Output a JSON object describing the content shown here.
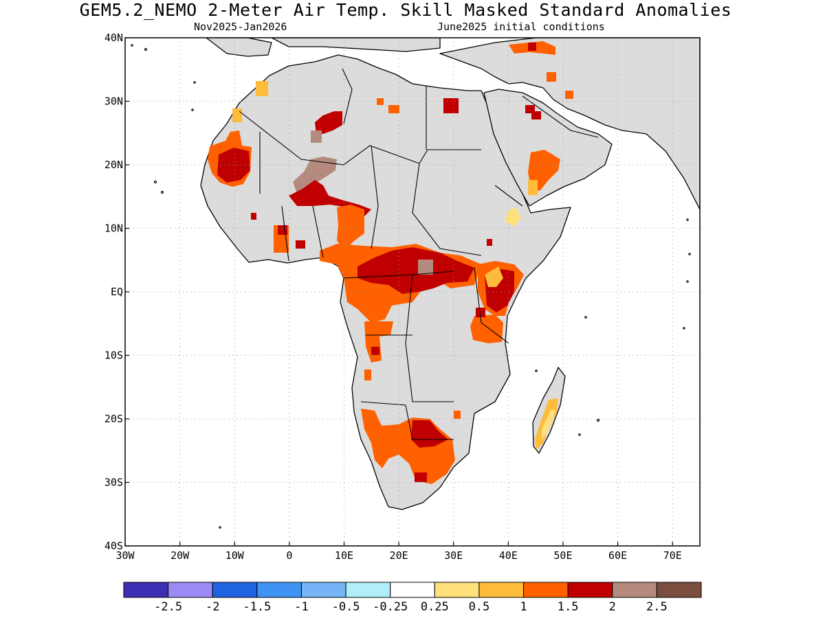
{
  "title": "GEM5.2_NEMO 2-Meter Air Temp. Skill Masked Standard Anomalies",
  "subtitle_left": "Nov2025-Jan2026",
  "subtitle_right": "June2025 initial conditions",
  "map": {
    "lon_range": [
      -30,
      75
    ],
    "lat_range": [
      -40,
      40
    ],
    "x_ticks": [
      {
        "lon": -30,
        "label": "30W"
      },
      {
        "lon": -20,
        "label": "20W"
      },
      {
        "lon": -10,
        "label": "10W"
      },
      {
        "lon": 0,
        "label": "0"
      },
      {
        "lon": 10,
        "label": "10E"
      },
      {
        "lon": 20,
        "label": "20E"
      },
      {
        "lon": 30,
        "label": "30E"
      },
      {
        "lon": 40,
        "label": "40E"
      },
      {
        "lon": 50,
        "label": "50E"
      },
      {
        "lon": 60,
        "label": "60E"
      },
      {
        "lon": 70,
        "label": "70E"
      }
    ],
    "y_ticks": [
      {
        "lat": 40,
        "label": "40N"
      },
      {
        "lat": 30,
        "label": "30N"
      },
      {
        "lat": 20,
        "label": "20N"
      },
      {
        "lat": 10,
        "label": "10N"
      },
      {
        "lat": 0,
        "label": "EQ"
      },
      {
        "lat": -10,
        "label": "10S"
      },
      {
        "lat": -20,
        "label": "20S"
      },
      {
        "lat": -30,
        "label": "30S"
      },
      {
        "lat": -40,
        "label": "40S"
      }
    ],
    "grid": true,
    "land_color": "#dcdcdc",
    "ocean_color": "#ffffff"
  },
  "colorbar": {
    "colors": [
      "#3d2fb4",
      "#9d8bf5",
      "#2063e0",
      "#3f94f3",
      "#75b5f7",
      "#b0eff8",
      "#ffffff",
      "#ffe07a",
      "#ffbb3a",
      "#ff6000",
      "#c00000",
      "#b48a7f",
      "#7a4d3f"
    ],
    "labels": [
      "-2.5",
      "-2",
      "-1.5",
      "-1",
      "-0.5",
      "-0.25",
      "0.25",
      "0.5",
      "1",
      "1.5",
      "2",
      "2.5"
    ]
  },
  "anomaly_colors": {
    "c05": "#ffe07a",
    "c1": "#ffbb3a",
    "c15": "#ff6000",
    "c2": "#c00000",
    "c25": "#b48a7f"
  }
}
